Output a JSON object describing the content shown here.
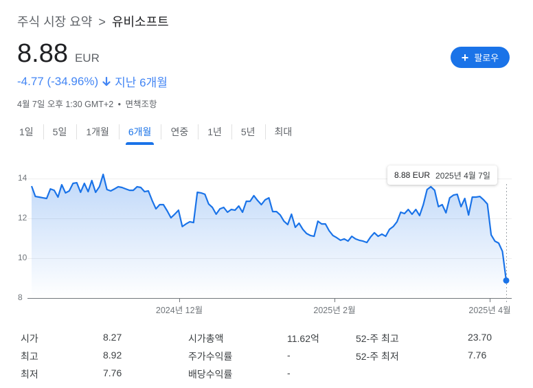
{
  "breadcrumb": {
    "parent": "주식 시장 요약",
    "separator": ">",
    "current": "유비소프트"
  },
  "quote": {
    "price": "8.88",
    "currency": "EUR",
    "change": "-4.77 (-34.96%)",
    "direction_icon": "arrow-down-icon",
    "period": "지난 6개월",
    "timestamp": "4월 7일 오후 1:30 GMT+2",
    "bullet": "•",
    "disclaimer": "면책조항",
    "change_color": "#4285f4"
  },
  "follow_button": {
    "icon": "plus-icon",
    "label": "팔로우",
    "color": "#1a73e8"
  },
  "tabs": [
    {
      "label": "1일",
      "active": false
    },
    {
      "label": "5일",
      "active": false
    },
    {
      "label": "1개월",
      "active": false
    },
    {
      "label": "6개월",
      "active": true
    },
    {
      "label": "연중",
      "active": false
    },
    {
      "label": "1년",
      "active": false
    },
    {
      "label": "5년",
      "active": false
    },
    {
      "label": "최대",
      "active": false
    }
  ],
  "tooltip": {
    "price": "8.88 EUR",
    "date": "2025년 4월 7일"
  },
  "chart_data": {
    "type": "area",
    "title": "",
    "xlabel": "",
    "ylabel": "",
    "ylim": [
      8,
      14.4
    ],
    "yticks": [
      "14",
      "12",
      "10",
      "8"
    ],
    "xticks": [
      "2024년 12월",
      "2025년 2월",
      "2025년 4월"
    ],
    "grid": true,
    "line_color": "#1a73e8",
    "series": [
      {
        "name": "유비소프트 (EUR)",
        "values": [
          13.62,
          13.1,
          13.07,
          13.03,
          13.0,
          13.48,
          13.41,
          13.07,
          13.69,
          13.28,
          13.38,
          13.76,
          13.79,
          13.31,
          13.76,
          13.34,
          13.9,
          13.31,
          13.59,
          14.21,
          13.45,
          13.38,
          13.48,
          13.59,
          13.55,
          13.48,
          13.41,
          13.41,
          13.59,
          13.55,
          13.34,
          13.38,
          12.9,
          12.48,
          12.69,
          12.69,
          12.38,
          12.03,
          12.21,
          12.41,
          11.59,
          11.72,
          11.83,
          11.79,
          13.31,
          13.28,
          13.21,
          12.72,
          12.55,
          12.21,
          12.48,
          12.55,
          12.31,
          12.45,
          12.41,
          12.62,
          12.31,
          12.86,
          12.86,
          13.14,
          12.9,
          12.69,
          12.93,
          13.03,
          12.34,
          12.34,
          12.17,
          11.86,
          11.69,
          12.21,
          11.55,
          11.76,
          11.45,
          11.24,
          11.14,
          11.1,
          11.86,
          11.72,
          11.72,
          11.38,
          11.14,
          11.03,
          10.9,
          10.97,
          10.86,
          11.1,
          10.97,
          10.9,
          10.86,
          10.79,
          11.07,
          11.28,
          11.1,
          11.21,
          11.1,
          11.45,
          11.59,
          11.83,
          12.31,
          12.24,
          12.45,
          12.21,
          12.45,
          12.14,
          12.69,
          13.45,
          13.59,
          13.41,
          12.59,
          12.69,
          12.28,
          13.03,
          13.17,
          13.21,
          12.59,
          13.0,
          12.17,
          13.07,
          13.07,
          13.1,
          12.93,
          12.72,
          11.17,
          10.86,
          10.76,
          10.34,
          8.88
        ]
      }
    ],
    "last_point": {
      "value": 8.88,
      "date": "2025년 4월 7일"
    }
  },
  "stats": {
    "col1": [
      {
        "label": "시가",
        "value": "8.27"
      },
      {
        "label": "최고",
        "value": "8.92"
      },
      {
        "label": "최저",
        "value": "7.76"
      }
    ],
    "col2": [
      {
        "label": "시가총액",
        "value": "11.62억"
      },
      {
        "label": "주가수익률",
        "value": "-"
      },
      {
        "label": "배당수익률",
        "value": "-"
      }
    ],
    "col3": [
      {
        "label": "52-주 최고",
        "value": "23.70"
      },
      {
        "label": "52-주 최저",
        "value": "7.76"
      }
    ]
  }
}
